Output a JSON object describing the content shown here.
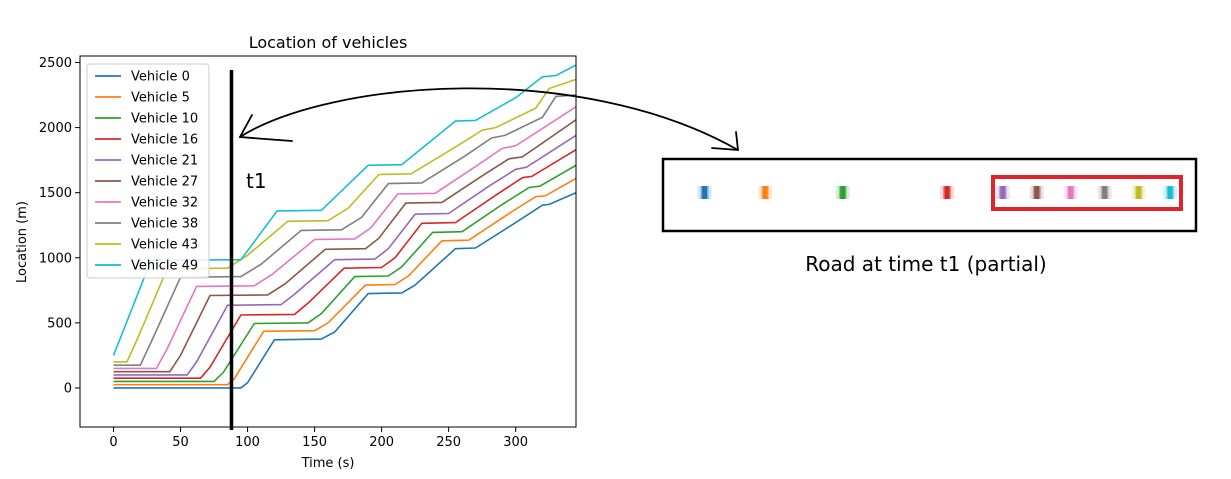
{
  "chart_data": {
    "type": "line",
    "title": "Location of vehicles",
    "xlabel": "Time (s)",
    "ylabel": "Location (m)",
    "xlim": [
      -25,
      345
    ],
    "ylim": [
      -300,
      2550
    ],
    "xticks": [
      0,
      50,
      100,
      150,
      200,
      250,
      300
    ],
    "yticks": [
      0,
      500,
      1000,
      1500,
      2000,
      2500
    ],
    "grid": false,
    "legend": "top-left",
    "series": [
      {
        "name": "Vehicle 0",
        "color": "#1f77b4",
        "points": [
          [
            0,
            0
          ],
          [
            95,
            0
          ],
          [
            100,
            40
          ],
          [
            120,
            370
          ],
          [
            155,
            375
          ],
          [
            165,
            430
          ],
          [
            190,
            725
          ],
          [
            215,
            730
          ],
          [
            225,
            790
          ],
          [
            255,
            1070
          ],
          [
            270,
            1075
          ],
          [
            300,
            1270
          ],
          [
            320,
            1405
          ],
          [
            325,
            1410
          ],
          [
            345,
            1500
          ]
        ]
      },
      {
        "name": "Vehicle 5",
        "color": "#ff7f0e",
        "points": [
          [
            0,
            25
          ],
          [
            85,
            25
          ],
          [
            90,
            70
          ],
          [
            112,
            435
          ],
          [
            150,
            440
          ],
          [
            160,
            500
          ],
          [
            188,
            790
          ],
          [
            210,
            795
          ],
          [
            220,
            860
          ],
          [
            245,
            1130
          ],
          [
            265,
            1135
          ],
          [
            295,
            1340
          ],
          [
            315,
            1470
          ],
          [
            322,
            1475
          ],
          [
            345,
            1610
          ]
        ]
      },
      {
        "name": "Vehicle 10",
        "color": "#2ca02c",
        "points": [
          [
            0,
            50
          ],
          [
            75,
            50
          ],
          [
            82,
            120
          ],
          [
            105,
            495
          ],
          [
            145,
            500
          ],
          [
            155,
            570
          ],
          [
            180,
            855
          ],
          [
            205,
            860
          ],
          [
            215,
            930
          ],
          [
            238,
            1195
          ],
          [
            260,
            1200
          ],
          [
            290,
            1410
          ],
          [
            310,
            1540
          ],
          [
            318,
            1550
          ],
          [
            345,
            1710
          ]
        ]
      },
      {
        "name": "Vehicle 16",
        "color": "#d62728",
        "points": [
          [
            0,
            75
          ],
          [
            65,
            75
          ],
          [
            72,
            160
          ],
          [
            95,
            560
          ],
          [
            135,
            565
          ],
          [
            145,
            650
          ],
          [
            172,
            920
          ],
          [
            200,
            925
          ],
          [
            210,
            1000
          ],
          [
            230,
            1265
          ],
          [
            255,
            1270
          ],
          [
            285,
            1480
          ],
          [
            305,
            1615
          ],
          [
            312,
            1625
          ],
          [
            345,
            1830
          ]
        ]
      },
      {
        "name": "Vehicle 21",
        "color": "#9467bd",
        "points": [
          [
            0,
            100
          ],
          [
            55,
            100
          ],
          [
            62,
            200
          ],
          [
            85,
            635
          ],
          [
            125,
            640
          ],
          [
            135,
            720
          ],
          [
            165,
            985
          ],
          [
            195,
            990
          ],
          [
            205,
            1070
          ],
          [
            225,
            1335
          ],
          [
            250,
            1340
          ],
          [
            280,
            1550
          ],
          [
            300,
            1680
          ],
          [
            308,
            1695
          ],
          [
            345,
            1940
          ]
        ]
      },
      {
        "name": "Vehicle 27",
        "color": "#8c564b",
        "points": [
          [
            0,
            125
          ],
          [
            42,
            125
          ],
          [
            50,
            250
          ],
          [
            72,
            710
          ],
          [
            115,
            715
          ],
          [
            128,
            800
          ],
          [
            158,
            1065
          ],
          [
            188,
            1070
          ],
          [
            198,
            1150
          ],
          [
            218,
            1420
          ],
          [
            245,
            1425
          ],
          [
            275,
            1630
          ],
          [
            295,
            1760
          ],
          [
            305,
            1775
          ],
          [
            345,
            2060
          ]
        ]
      },
      {
        "name": "Vehicle 32",
        "color": "#e377c2",
        "points": [
          [
            0,
            150
          ],
          [
            32,
            150
          ],
          [
            40,
            300
          ],
          [
            62,
            780
          ],
          [
            105,
            785
          ],
          [
            118,
            870
          ],
          [
            150,
            1140
          ],
          [
            180,
            1145
          ],
          [
            192,
            1230
          ],
          [
            212,
            1490
          ],
          [
            240,
            1495
          ],
          [
            270,
            1700
          ],
          [
            290,
            1840
          ],
          [
            300,
            1860
          ],
          [
            345,
            2160
          ]
        ]
      },
      {
        "name": "Vehicle 38",
        "color": "#7f7f7f",
        "points": [
          [
            0,
            175
          ],
          [
            20,
            175
          ],
          [
            28,
            350
          ],
          [
            50,
            850
          ],
          [
            95,
            855
          ],
          [
            110,
            950
          ],
          [
            140,
            1210
          ],
          [
            170,
            1215
          ],
          [
            185,
            1310
          ],
          [
            205,
            1570
          ],
          [
            230,
            1575
          ],
          [
            262,
            1780
          ],
          [
            282,
            1920
          ],
          [
            292,
            1940
          ],
          [
            320,
            2080
          ],
          [
            330,
            2240
          ],
          [
            345,
            2250
          ]
        ]
      },
      {
        "name": "Vehicle 43",
        "color": "#bcbd22",
        "points": [
          [
            0,
            200
          ],
          [
            10,
            200
          ],
          [
            18,
            380
          ],
          [
            40,
            915
          ],
          [
            85,
            920
          ],
          [
            100,
            1020
          ],
          [
            130,
            1280
          ],
          [
            160,
            1285
          ],
          [
            175,
            1380
          ],
          [
            198,
            1640
          ],
          [
            222,
            1645
          ],
          [
            255,
            1850
          ],
          [
            275,
            1980
          ],
          [
            285,
            2000
          ],
          [
            315,
            2150
          ],
          [
            325,
            2300
          ],
          [
            345,
            2370
          ]
        ]
      },
      {
        "name": "Vehicle 49",
        "color": "#17becf",
        "points": [
          [
            0,
            250
          ],
          [
            28,
            980
          ],
          [
            95,
            985
          ],
          [
            122,
            1360
          ],
          [
            155,
            1365
          ],
          [
            190,
            1710
          ],
          [
            215,
            1715
          ],
          [
            255,
            2050
          ],
          [
            270,
            2055
          ],
          [
            300,
            2230
          ],
          [
            320,
            2390
          ],
          [
            330,
            2400
          ],
          [
            345,
            2480
          ]
        ]
      }
    ],
    "annotations": [
      {
        "text": "t1",
        "x_value": 88
      }
    ]
  },
  "road": {
    "caption": "Road at time t1 (partial)",
    "vehicles": [
      {
        "color": "#1f77b4",
        "pos": 0.03
      },
      {
        "color": "#ff7f0e",
        "pos": 0.155
      },
      {
        "color": "#2ca02c",
        "pos": 0.315
      },
      {
        "color": "#d62728",
        "pos": 0.53
      },
      {
        "color": "#9467bd",
        "pos": 0.645
      },
      {
        "color": "#8c564b",
        "pos": 0.715
      },
      {
        "color": "#e377c2",
        "pos": 0.785
      },
      {
        "color": "#7f7f7f",
        "pos": 0.855
      },
      {
        "color": "#bcbd22",
        "pos": 0.925
      },
      {
        "color": "#17becf",
        "pos": 0.99
      }
    ],
    "highlight_color": "#e0242b"
  }
}
